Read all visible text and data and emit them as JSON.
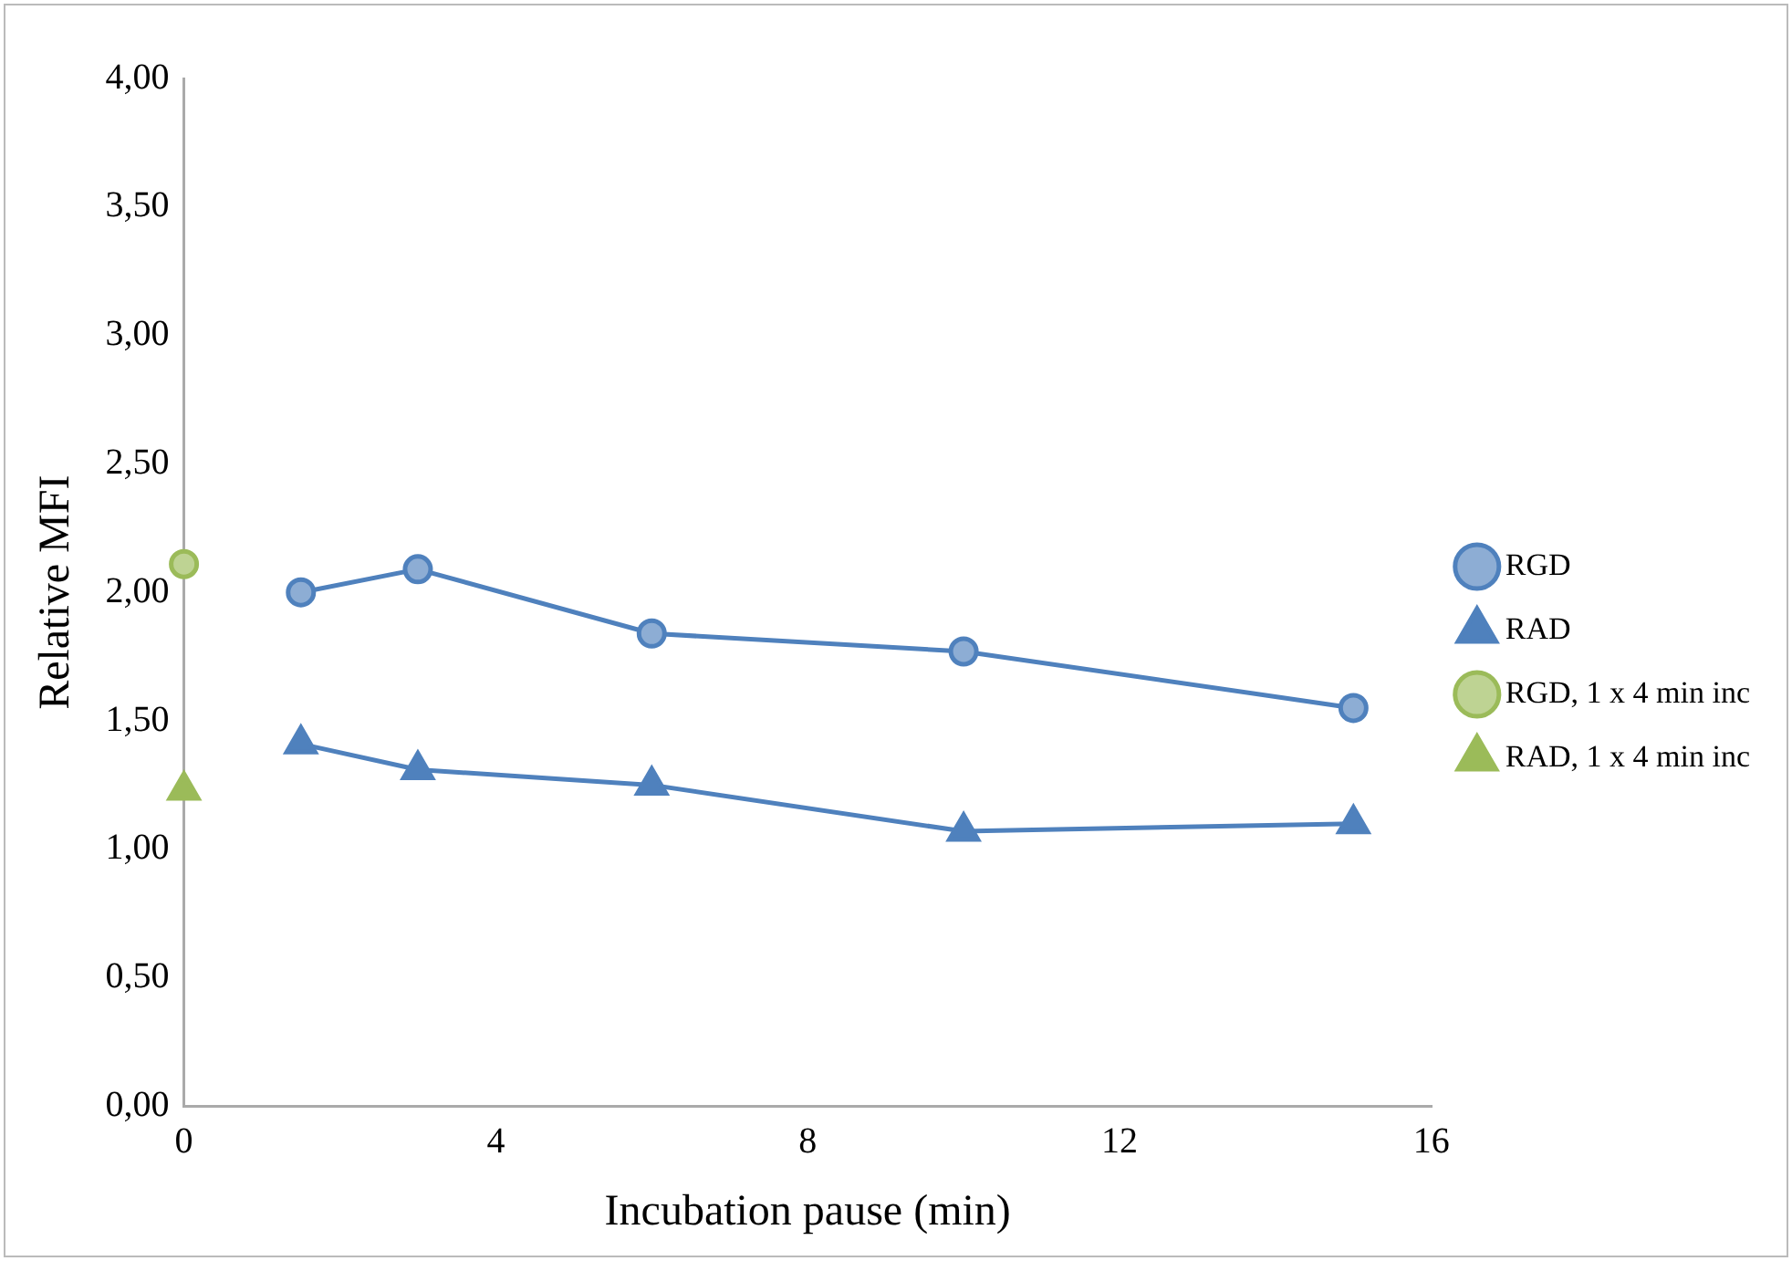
{
  "chart_data": {
    "type": "line",
    "xlabel": "Incubation pause (min)",
    "ylabel": "Relative MFI",
    "xlim": [
      0,
      16
    ],
    "xticks": [
      0,
      4,
      8,
      12,
      16
    ],
    "ylim": [
      0,
      4
    ],
    "yticks": [
      {
        "value": 0,
        "label": "0,00"
      },
      {
        "value": 0.5,
        "label": "0,50"
      },
      {
        "value": 1,
        "label": "1,00"
      },
      {
        "value": 1.5,
        "label": "1,50"
      },
      {
        "value": 2,
        "label": "2,00"
      },
      {
        "value": 2.5,
        "label": "2,50"
      },
      {
        "value": 3,
        "label": "3,00"
      },
      {
        "value": 3.5,
        "label": "3,50"
      },
      {
        "value": 4,
        "label": "4,00"
      }
    ],
    "grid": false,
    "legend": "right",
    "line_style": "solid",
    "series": [
      {
        "name": "RGD",
        "color": "#4f81bd",
        "marker": "circle",
        "x": [
          1.5,
          3,
          6,
          10,
          15
        ],
        "values": [
          2.0,
          2.09,
          1.84,
          1.77,
          1.55
        ]
      },
      {
        "name": "RAD",
        "color": "#4f81bd",
        "marker": "triangle",
        "x": [
          1.5,
          3,
          6,
          10,
          15
        ],
        "values": [
          1.41,
          1.31,
          1.25,
          1.07,
          1.1
        ]
      },
      {
        "name": "RGD, 1 x 4 min inc",
        "color": "#9bbb59",
        "marker": "circle",
        "x": [
          0
        ],
        "values": [
          2.11
        ]
      },
      {
        "name": "RAD, 1 x 4 min inc",
        "color": "#9bbb59",
        "marker": "triangle",
        "x": [
          0
        ],
        "values": [
          1.23
        ]
      }
    ]
  }
}
